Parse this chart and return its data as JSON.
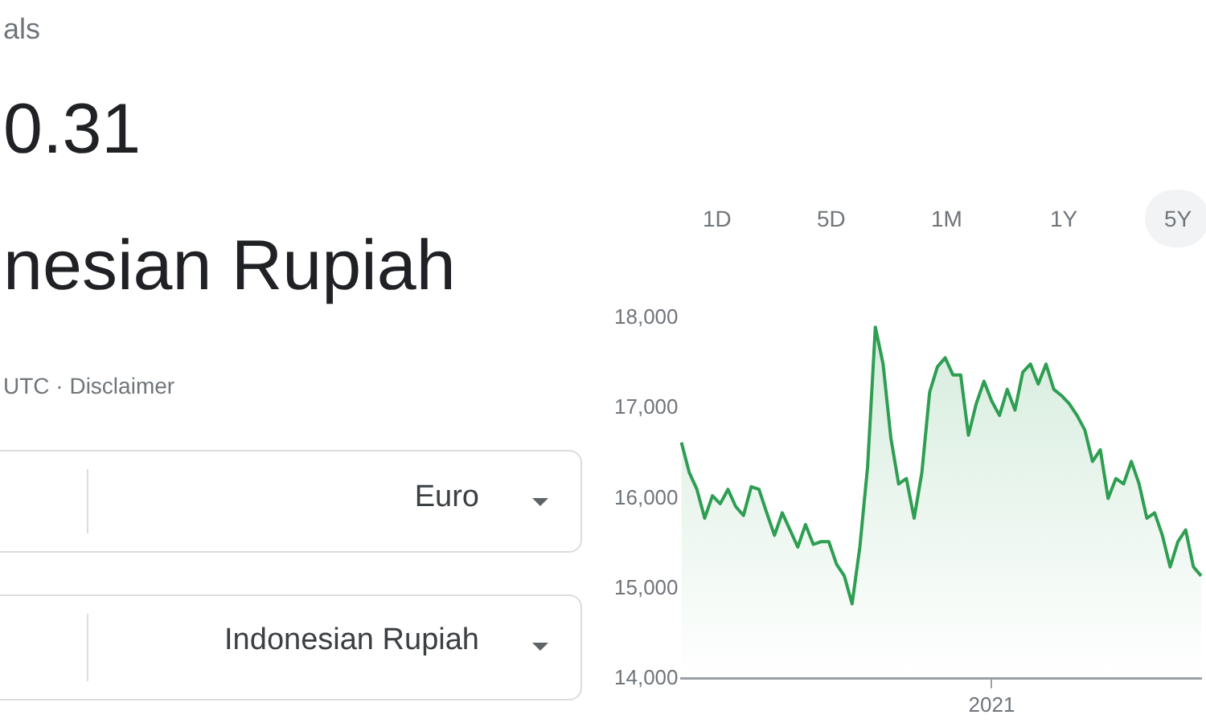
{
  "chart_data": {
    "type": "area",
    "categories": [
      null,
      null,
      null,
      null,
      null,
      null,
      null,
      null,
      null,
      null,
      null,
      null,
      null,
      null,
      null,
      null,
      null,
      null,
      null,
      null,
      null,
      null,
      null,
      null,
      null,
      null,
      null,
      null,
      null,
      null,
      null,
      null,
      null,
      null,
      null,
      null,
      null,
      null,
      null,
      null,
      "2021",
      null,
      null,
      null,
      null,
      null,
      null,
      null,
      null,
      null,
      null,
      null,
      null,
      null,
      null,
      null,
      null,
      null,
      null,
      null,
      null,
      null,
      null,
      null,
      null,
      null,
      null,
      null
    ],
    "series": [
      {
        "color": "#2e9e52",
        "values": [
          16620,
          16290,
          16100,
          15780,
          16030,
          15940,
          16100,
          15910,
          15810,
          16130,
          16100,
          15840,
          15590,
          15840,
          15650,
          15460,
          15710,
          15490,
          15520,
          15520,
          15270,
          15140,
          14830,
          15460,
          16350,
          17900,
          17490,
          16670,
          16160,
          16220,
          15780,
          16290,
          17180,
          17460,
          17560,
          17370,
          17370,
          16700,
          17050,
          17300,
          17080,
          16920,
          17210,
          16980,
          17400,
          17490,
          17270,
          17490,
          17210,
          17140,
          17050,
          16920,
          16760,
          16410,
          16540,
          16000,
          16220,
          16160,
          16410,
          16160,
          15780,
          15840,
          15590,
          15240,
          15520,
          15650,
          15240,
          15140
        ]
      }
    ],
    "ylim": [
      14000,
      18000
    ],
    "yticks": [
      {
        "value": 14000,
        "label": "14,000"
      },
      {
        "value": 15000,
        "label": "15,000"
      },
      {
        "value": 16000,
        "label": "16,000"
      },
      {
        "value": 17000,
        "label": "17,000"
      },
      {
        "value": 18000,
        "label": "18,000"
      }
    ],
    "marker": "none",
    "annotations": [
      "als",
      "0.31",
      "nesian Rupiah",
      "UTC · Disclaimer",
      "Euro",
      "Indonesian Rupiah",
      "1D",
      "5D",
      "1M",
      "1Y",
      "5Y"
    ]
  }
}
